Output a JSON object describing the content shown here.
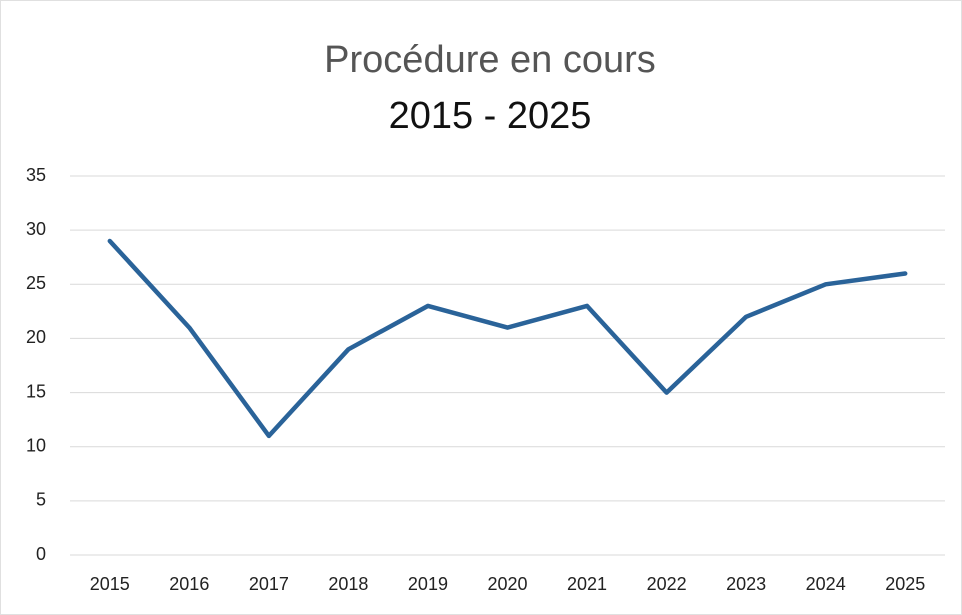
{
  "chart_data": {
    "type": "line",
    "title": "Procédure en cours",
    "subtitle": "2015 - 2025",
    "categories": [
      "2015",
      "2016",
      "2017",
      "2018",
      "2019",
      "2020",
      "2021",
      "2022",
      "2023",
      "2024",
      "2025"
    ],
    "values": [
      29,
      21,
      11,
      19,
      23,
      21,
      23,
      15,
      22,
      25,
      26
    ],
    "color": "#2a6399",
    "ylim": [
      0,
      35
    ],
    "yticks": [
      0,
      5,
      10,
      15,
      20,
      25,
      30,
      35
    ],
    "grid": true
  }
}
